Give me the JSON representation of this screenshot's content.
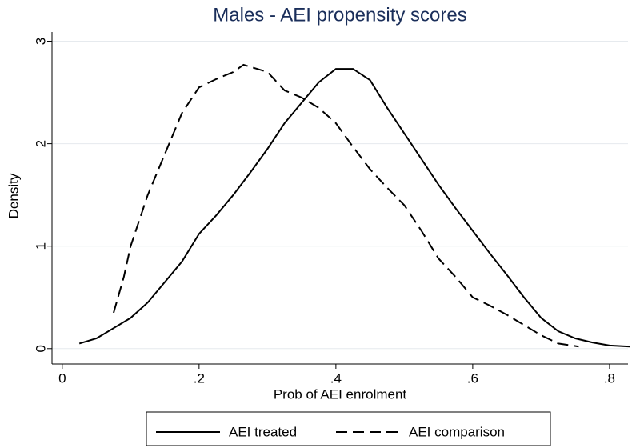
{
  "chart_data": {
    "type": "line",
    "title": "Males - AEI propensity scores",
    "xlabel": "Prob of AEI enrolment",
    "ylabel": "Density",
    "xlim": [
      -0.015,
      0.827
    ],
    "ylim": [
      -0.15,
      3.09
    ],
    "xticks": [
      0,
      {
        "value": 0.2,
        "label": ".2"
      },
      {
        "value": 0.4,
        "label": ".4"
      },
      {
        "value": 0.6,
        "label": ".6"
      },
      {
        "value": 0.8,
        "label": ".8"
      }
    ],
    "yticks": [
      0,
      1,
      2,
      3
    ],
    "grid": true,
    "legend": "bottom",
    "series": [
      {
        "name": "AEI treated",
        "color": "#000000",
        "line_style": "solid",
        "x": [
          0.025,
          0.05,
          0.075,
          0.1,
          0.125,
          0.15,
          0.175,
          0.2,
          0.225,
          0.25,
          0.275,
          0.3,
          0.325,
          0.35,
          0.375,
          0.4,
          0.425,
          0.45,
          0.475,
          0.5,
          0.525,
          0.55,
          0.575,
          0.6,
          0.625,
          0.65,
          0.675,
          0.7,
          0.725,
          0.75,
          0.775,
          0.8,
          0.83
        ],
        "values": [
          0.05,
          0.1,
          0.2,
          0.3,
          0.45,
          0.65,
          0.85,
          1.12,
          1.3,
          1.5,
          1.72,
          1.95,
          2.2,
          2.4,
          2.6,
          2.73,
          2.73,
          2.62,
          2.35,
          2.1,
          1.85,
          1.6,
          1.37,
          1.15,
          0.93,
          0.72,
          0.5,
          0.3,
          0.17,
          0.1,
          0.06,
          0.03,
          0.02
        ]
      },
      {
        "name": "AEI comparison",
        "color": "#000000",
        "line_style": "dashed",
        "x": [
          0.075,
          0.09,
          0.1,
          0.125,
          0.15,
          0.175,
          0.2,
          0.225,
          0.25,
          0.265,
          0.3,
          0.325,
          0.35,
          0.375,
          0.4,
          0.425,
          0.45,
          0.475,
          0.5,
          0.525,
          0.55,
          0.575,
          0.6,
          0.625,
          0.65,
          0.675,
          0.7,
          0.725,
          0.755
        ],
        "values": [
          0.35,
          0.7,
          1.0,
          1.5,
          1.9,
          2.3,
          2.55,
          2.63,
          2.7,
          2.77,
          2.7,
          2.52,
          2.45,
          2.35,
          2.2,
          1.97,
          1.75,
          1.57,
          1.4,
          1.15,
          0.88,
          0.7,
          0.5,
          0.42,
          0.33,
          0.23,
          0.13,
          0.05,
          0.02
        ]
      }
    ]
  }
}
